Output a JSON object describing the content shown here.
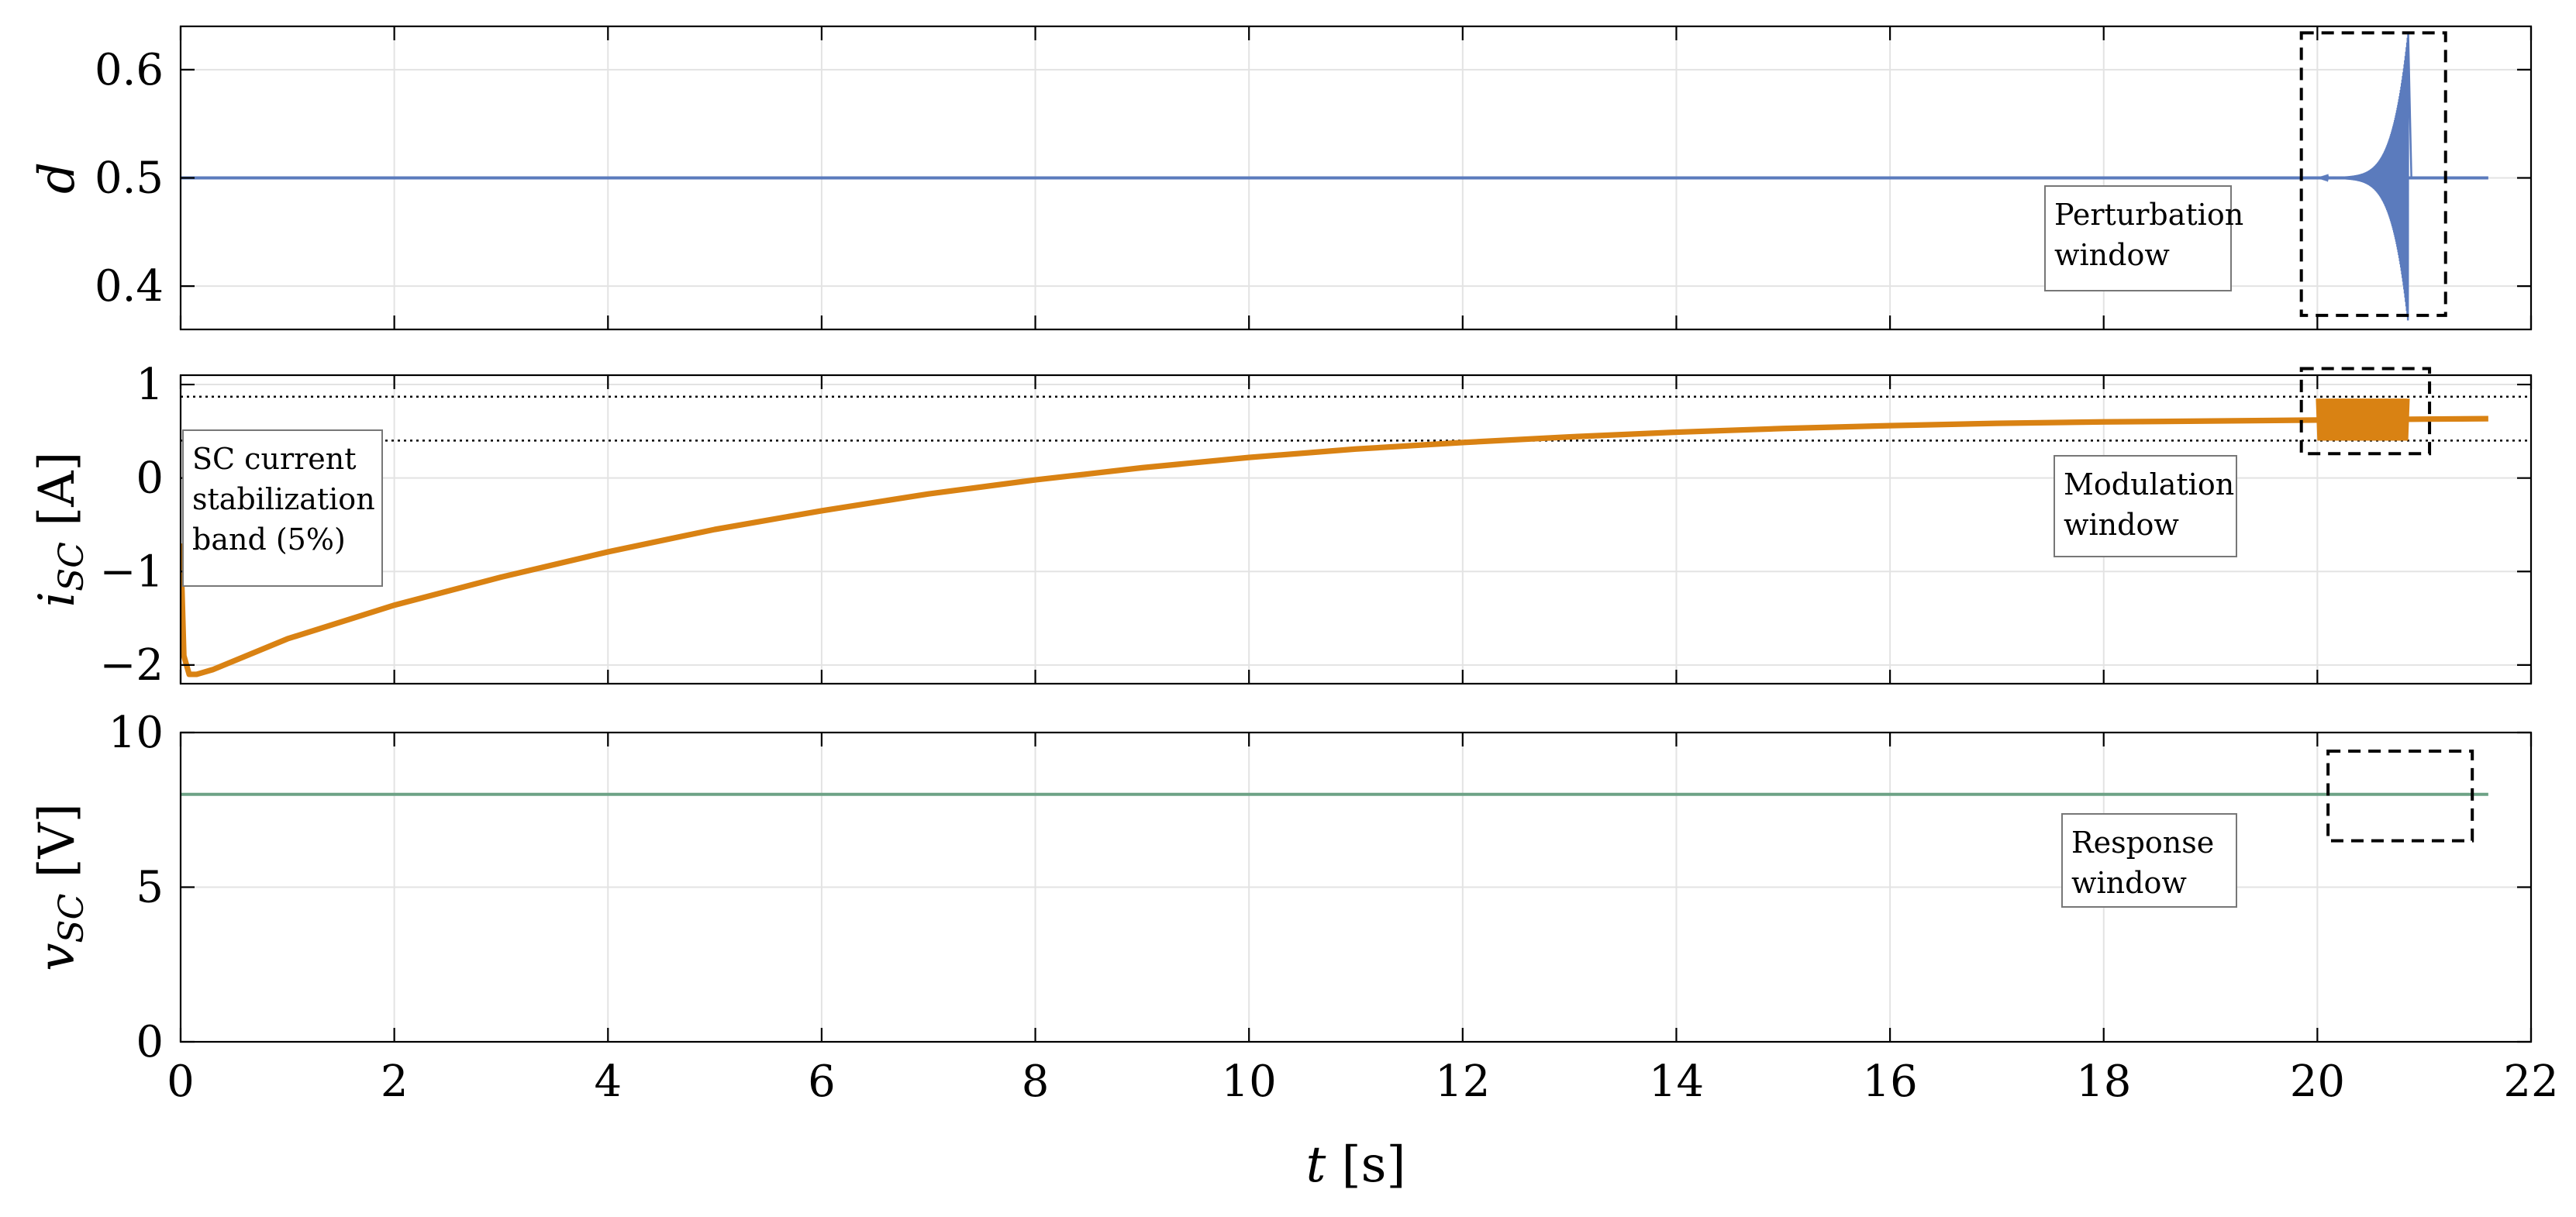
{
  "chart_data": [
    {
      "type": "line",
      "id": "d",
      "ylabel_main": "d",
      "ylabel_sub": "",
      "ylabel_unit": "",
      "xlim": [
        0,
        22
      ],
      "ylim": [
        0.36,
        0.64
      ],
      "yticks": [
        0.4,
        0.5,
        0.6
      ],
      "ytick_labels": [
        "0.4",
        "0.5",
        "0.6"
      ],
      "xticks": [
        0,
        2,
        4,
        6,
        8,
        10,
        12,
        14,
        16,
        18,
        20,
        22
      ],
      "show_xtick_labels": false,
      "grid": true,
      "color": "#5b7bbd",
      "series": [
        {
          "x": [
            0,
            12,
            20.0,
            20.3,
            20.6,
            20.75,
            20.8,
            20.85,
            20.9,
            20.95,
            21.0,
            21.6
          ],
          "y": [
            0.5,
            0.5,
            0.5,
            0.5,
            0.5,
            0.5,
            0.5,
            0.5,
            0.5,
            0.5,
            0.5,
            0.5
          ]
        }
      ],
      "oscillation": {
        "t_start": 20.0,
        "t_peak": 20.85,
        "t_end": 20.88,
        "amp_peak": 0.13
      },
      "annotation": {
        "lines": [
          "Perturbation",
          "window"
        ]
      },
      "window": {
        "x": [
          19.85,
          21.2
        ],
        "y": [
          0.373,
          0.634
        ]
      }
    },
    {
      "type": "line",
      "id": "isc",
      "ylabel_main": "i",
      "ylabel_sub": "SC",
      "ylabel_unit": " [A]",
      "xlim": [
        0,
        22
      ],
      "ylim": [
        -2.2,
        1.1
      ],
      "yticks": [
        -2,
        -1,
        0,
        1
      ],
      "ytick_labels": [
        "−2",
        "−1",
        "0",
        "1"
      ],
      "xticks": [
        0,
        2,
        4,
        6,
        8,
        10,
        12,
        14,
        16,
        18,
        20,
        22
      ],
      "show_xtick_labels": false,
      "grid": true,
      "color": "#d98213",
      "band": [
        0.4,
        0.87
      ],
      "series": [
        {
          "x": [
            0,
            0.03,
            0.08,
            0.15,
            0.3,
            1,
            2,
            3,
            4,
            5,
            6,
            7,
            8,
            9,
            10,
            11,
            12,
            13,
            14,
            15,
            16,
            17,
            18,
            19,
            20,
            21,
            21.6
          ],
          "y": [
            -0.7,
            -1.9,
            -2.1,
            -2.1,
            -2.05,
            -1.72,
            -1.36,
            -1.06,
            -0.79,
            -0.55,
            -0.35,
            -0.17,
            -0.02,
            0.11,
            0.22,
            0.31,
            0.38,
            0.44,
            0.49,
            0.53,
            0.56,
            0.585,
            0.6,
            0.61,
            0.62,
            0.63,
            0.635
          ]
        }
      ],
      "band_width": 0.06,
      "modulation": {
        "t_start": 20.0,
        "t_end": 20.85,
        "low": 0.4,
        "high": 0.85
      },
      "annotation_left": {
        "lines": [
          "SC current",
          "stabilization",
          "band (5%)"
        ]
      },
      "annotation": {
        "lines": [
          "Modulation",
          "window"
        ]
      },
      "window": {
        "x": [
          19.85,
          21.05
        ],
        "y": [
          0.26,
          1.17
        ]
      }
    },
    {
      "type": "line",
      "id": "vsc",
      "ylabel_main": "v",
      "ylabel_sub": "SC",
      "ylabel_unit": " [V]",
      "xlim": [
        0,
        22
      ],
      "ylim": [
        0,
        10
      ],
      "yticks": [
        0,
        5,
        10
      ],
      "ytick_labels": [
        "0",
        "5",
        "10"
      ],
      "xticks": [
        0,
        2,
        4,
        6,
        8,
        10,
        12,
        14,
        16,
        18,
        20,
        22
      ],
      "xtick_labels": [
        "0",
        "2",
        "4",
        "6",
        "8",
        "10",
        "12",
        "14",
        "16",
        "18",
        "20",
        "22"
      ],
      "show_xtick_labels": true,
      "xlabel_main": "t",
      "xlabel_unit": " [s]",
      "grid": true,
      "color": "#6da286",
      "series": [
        {
          "x": [
            0,
            21.6
          ],
          "y": [
            8.0,
            8.0
          ]
        }
      ],
      "annotation": {
        "lines": [
          "Response",
          "window"
        ]
      },
      "window": {
        "x": [
          20.1,
          21.45
        ],
        "y": [
          6.5,
          9.4
        ]
      }
    }
  ]
}
